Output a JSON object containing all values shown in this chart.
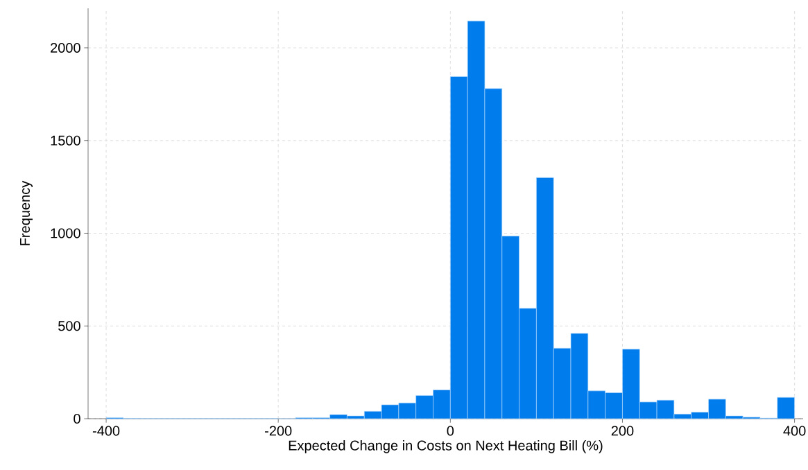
{
  "chart_data": {
    "type": "histogram",
    "xlabel": "Expected Change in Costs on Next Heating Bill (%)",
    "ylabel": "Frequency",
    "bins": [
      -400,
      -380,
      -360,
      -340,
      -320,
      -300,
      -280,
      -260,
      -240,
      -220,
      -200,
      -180,
      -160,
      -140,
      -120,
      -100,
      -80,
      -60,
      -40,
      -20,
      0,
      20,
      40,
      60,
      80,
      100,
      120,
      140,
      160,
      180,
      200,
      220,
      240,
      260,
      280,
      300,
      320,
      340,
      360,
      380,
      400
    ],
    "values": [
      5,
      2,
      1,
      1,
      1,
      1,
      1,
      1,
      1,
      1,
      0,
      5,
      5,
      22,
      15,
      40,
      75,
      85,
      125,
      155,
      1845,
      2145,
      1780,
      985,
      595,
      1300,
      380,
      460,
      150,
      140,
      375,
      90,
      100,
      25,
      35,
      105,
      15,
      8,
      3,
      115
    ],
    "color": "#007ced",
    "xlim": [
      -421,
      410
    ],
    "ylim": [
      0,
      2213
    ],
    "xticks": [
      -400,
      -200,
      0,
      200,
      400
    ],
    "yticks": [
      0,
      500,
      1000,
      1500,
      2000
    ],
    "grid": true
  }
}
